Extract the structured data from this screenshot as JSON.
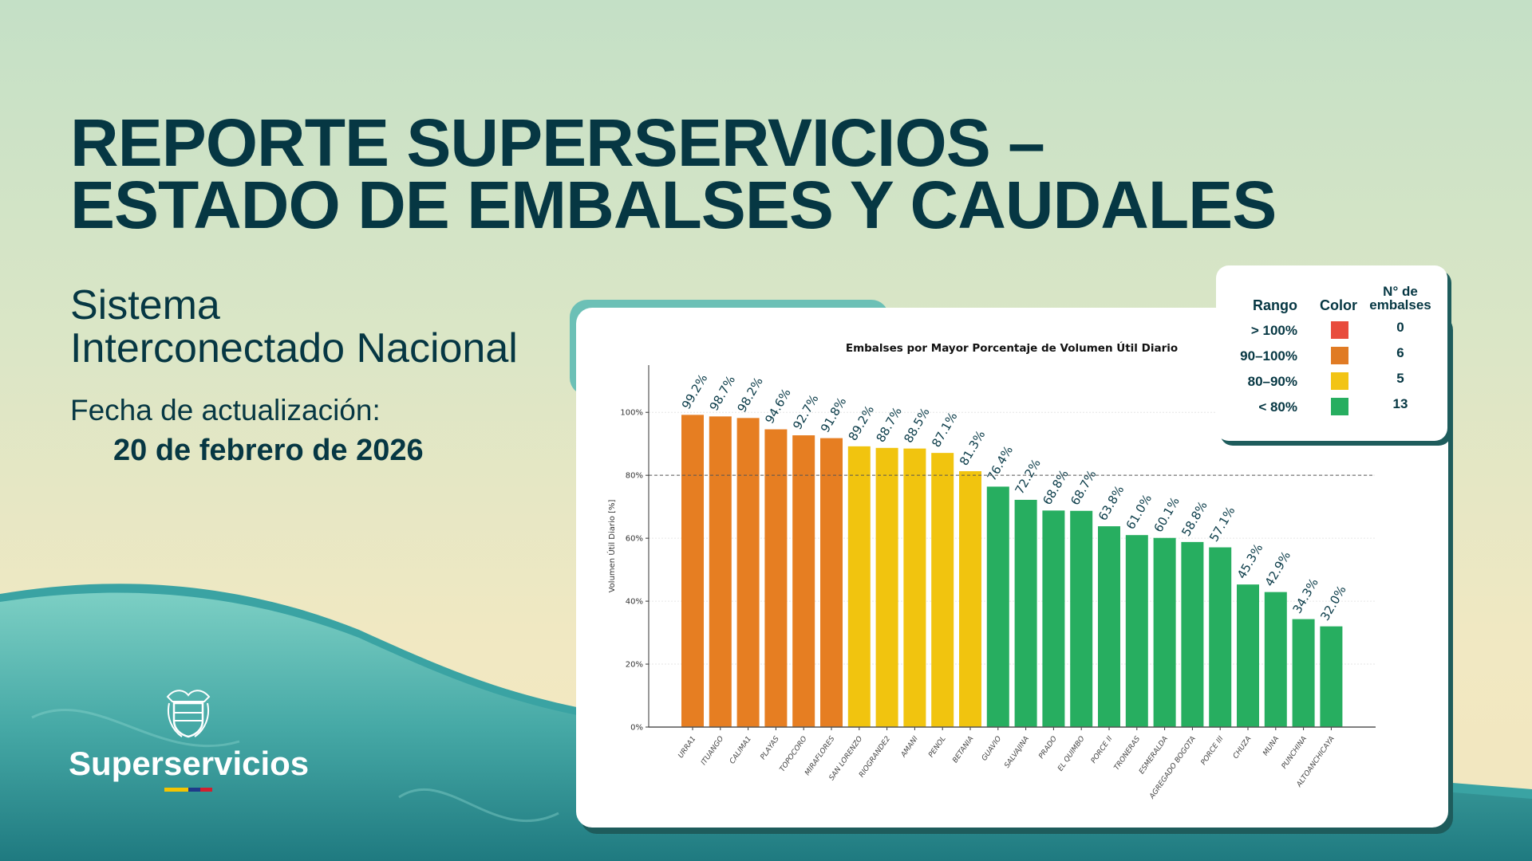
{
  "header": {
    "title_line1": "REPORTE SUPERSERVICIOS –",
    "title_line2": "ESTADO DE EMBALSES Y CAUDALES"
  },
  "subtitle": {
    "line1": "Sistema",
    "line2": "Interconectado Nacional"
  },
  "update": {
    "label": "Fecha de actualización:",
    "date": "20 de febrero de 2026"
  },
  "logo": {
    "text": "Superservicios",
    "flag_colors": [
      "#f4c400",
      "#1e3a8a",
      "#d21f2f"
    ]
  },
  "legend": {
    "headers": {
      "range": "Rango",
      "color": "Color",
      "count_line1": "N° de",
      "count_line2": "embalses"
    },
    "rows": [
      {
        "range": "> 100%",
        "color": "#e84c3d",
        "count": "0"
      },
      {
        "range": "90–100%",
        "color": "#e07b24",
        "count": "6"
      },
      {
        "range": "80–90%",
        "color": "#f2c415",
        "count": "5"
      },
      {
        "range": "< 80%",
        "color": "#27ae60",
        "count": "13"
      }
    ]
  },
  "chart_data": {
    "type": "bar",
    "title": "Embalses por Mayor Porcentaje de Volumen Útil Diario",
    "xlabel": "",
    "ylabel": "Volumen Útil Diario [%]",
    "ylim": [
      0,
      115
    ],
    "yticks": [
      0,
      20,
      40,
      60,
      80,
      100
    ],
    "ytick_labels": [
      "0%",
      "20%",
      "40%",
      "60%",
      "80%",
      "100%"
    ],
    "reference_line": 80,
    "grid": "horizontal dotted",
    "categories": [
      "URRA1",
      "ITUANGO",
      "CALIMA1",
      "PLAYAS",
      "TOPOCORO",
      "MIRAFLORES",
      "SAN LORENZO",
      "RIOGRANDE2",
      "AMANI",
      "PENOL",
      "BETANIA",
      "GUAVIO",
      "SALVAJINA",
      "PRADO",
      "EL QUIMBO",
      "PORCE II",
      "TRONERAS",
      "ESMERALDA",
      "AGREGADO BOGOTA",
      "PORCE III",
      "CHUZA",
      "MUNA",
      "PUNCHINA",
      "ALTOANCHICAYA"
    ],
    "values": [
      99.2,
      98.7,
      98.2,
      94.6,
      92.7,
      91.8,
      89.2,
      88.7,
      88.5,
      87.1,
      81.3,
      76.4,
      72.2,
      68.8,
      68.7,
      63.8,
      61.0,
      60.1,
      58.8,
      57.1,
      45.3,
      42.9,
      34.3,
      32.0
    ],
    "data_labels": [
      "99.2%",
      "98.7%",
      "98.2%",
      "94.6%",
      "92.7%",
      "91.8%",
      "89.2%",
      "88.7%",
      "88.5%",
      "87.1%",
      "81.3%",
      "76.4%",
      "72.2%",
      "68.8%",
      "68.7%",
      "63.8%",
      "61.0%",
      "60.1%",
      "58.8%",
      "57.1%",
      "45.3%",
      "42.9%",
      "34.3%",
      "32.0%"
    ],
    "colors": {
      "90-100": "#e67e22",
      "80-90": "#f1c40f",
      "<80": "#27ae60"
    }
  }
}
